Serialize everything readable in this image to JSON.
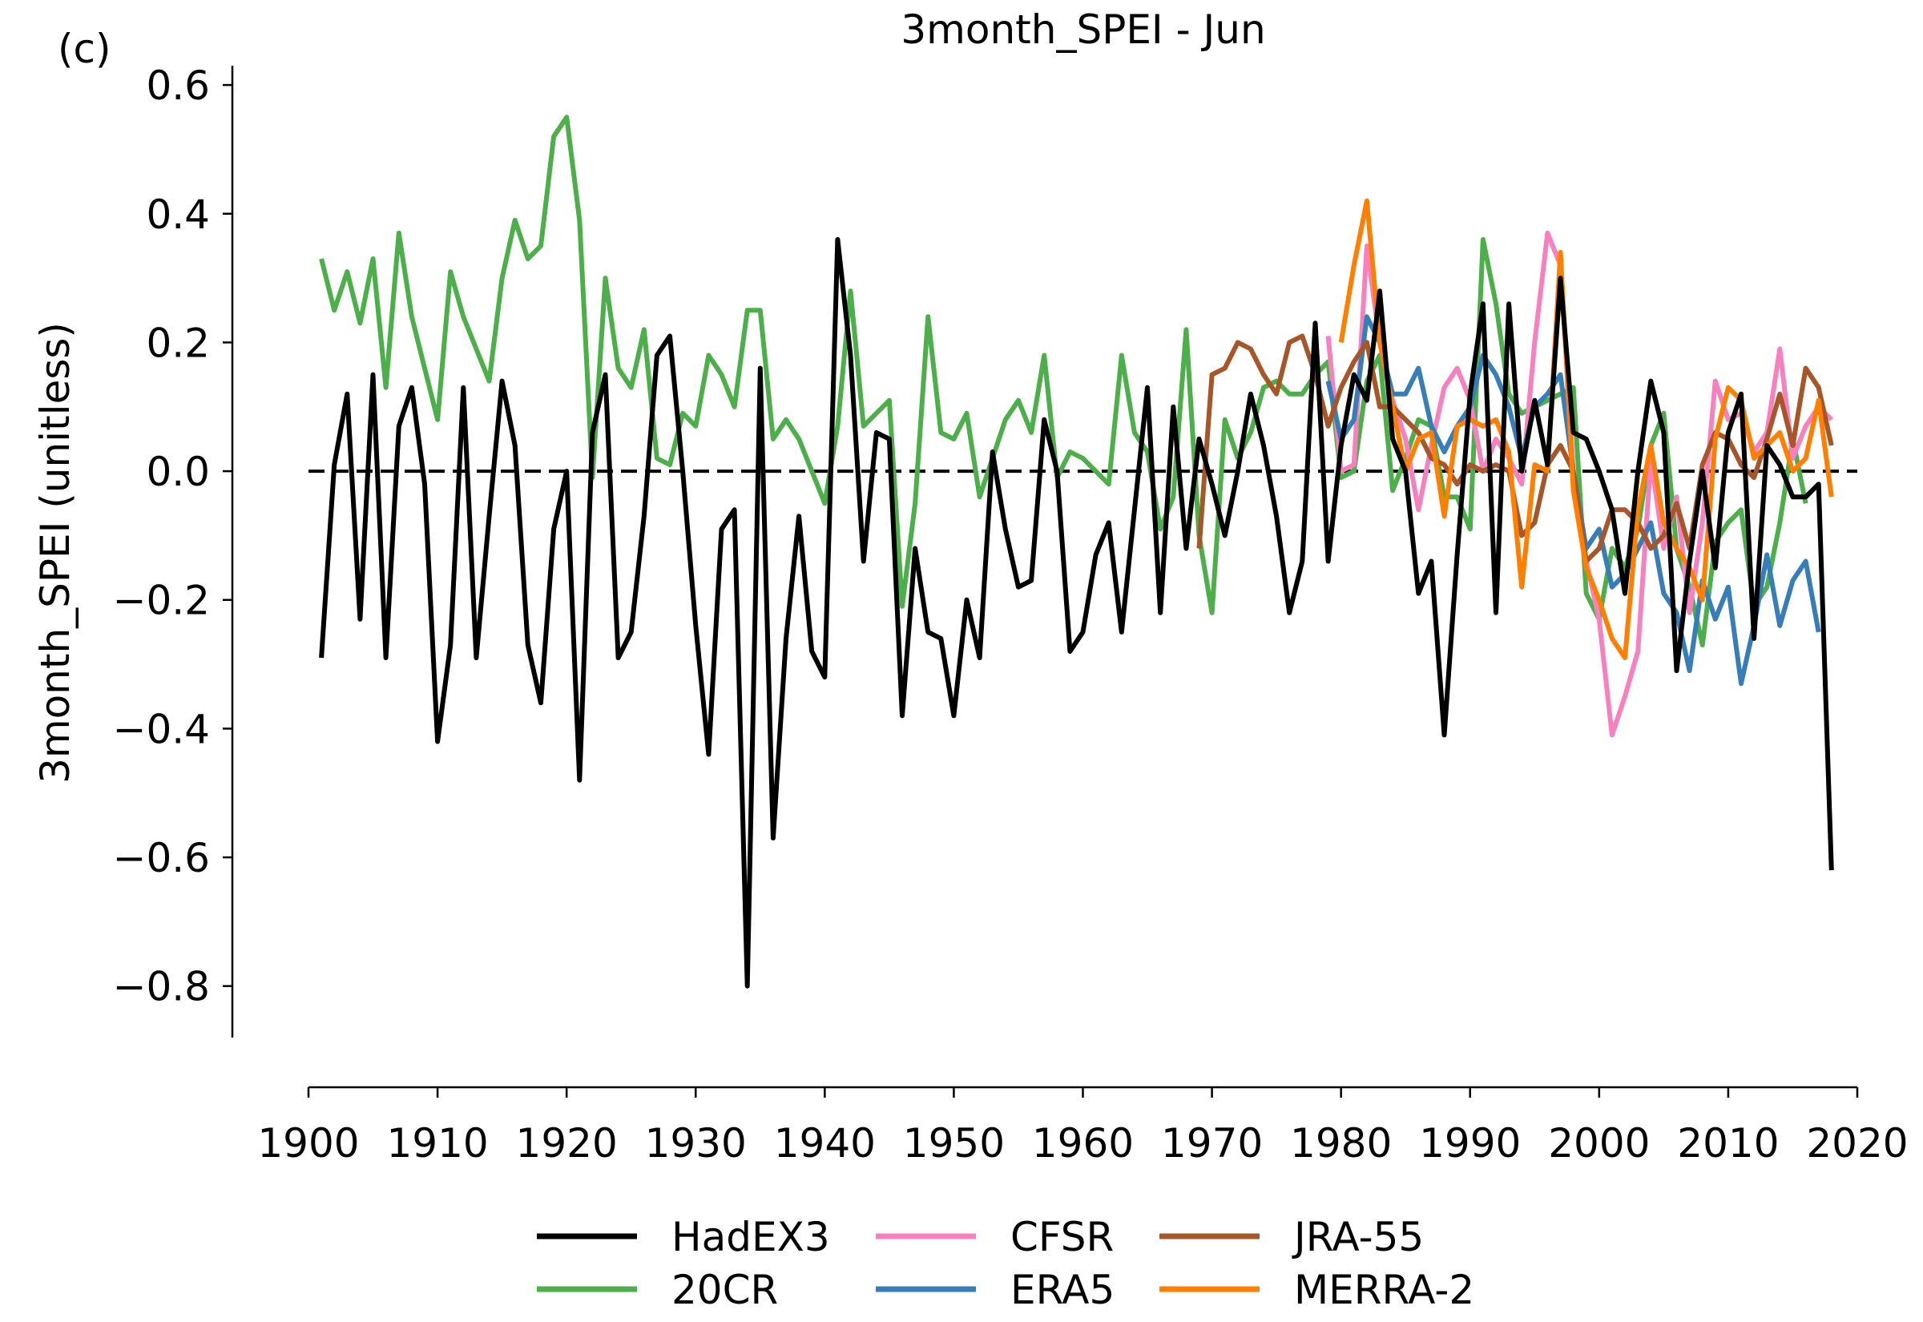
{
  "chart_data": {
    "type": "line",
    "panel_label": "(c)",
    "title": "3month_SPEI - Jun",
    "xlabel": "",
    "ylabel": "3month_SPEI (unitless)",
    "xlim": [
      1900,
      2020
    ],
    "ylim": [
      -0.88,
      0.63
    ],
    "x_ticks": [
      1900,
      1910,
      1920,
      1930,
      1940,
      1950,
      1960,
      1970,
      1980,
      1990,
      2000,
      2010,
      2020
    ],
    "x_tick_labels": [
      "1900",
      "1910",
      "1920",
      "1930",
      "1940",
      "1950",
      "1960",
      "1970",
      "1980",
      "1990",
      "2000",
      "2010",
      "2020"
    ],
    "y_ticks": [
      0.6,
      0.4,
      0.2,
      0.0,
      -0.2,
      -0.4,
      -0.6,
      -0.8
    ],
    "y_tick_labels": [
      "0.6",
      "0.4",
      "0.2",
      "0.0",
      "−0.2",
      "−0.4",
      "−0.6",
      "−0.8"
    ],
    "zero_line": {
      "y": 0.0,
      "style": "dashed",
      "color": "#000000"
    },
    "grid": false,
    "legend_position": "bottom-center",
    "series": [
      {
        "name": "HadEX3",
        "color": "#000000",
        "start_year": 1901,
        "values": [
          -0.29,
          0.01,
          0.12,
          -0.23,
          0.15,
          -0.29,
          0.07,
          0.13,
          -0.02,
          -0.42,
          -0.27,
          0.13,
          -0.29,
          -0.07,
          0.14,
          0.04,
          -0.27,
          -0.36,
          -0.09,
          0.0,
          -0.48,
          0.06,
          0.15,
          -0.29,
          -0.25,
          -0.07,
          0.18,
          0.21,
          0.0,
          -0.24,
          -0.44,
          -0.09,
          -0.06,
          -0.8,
          0.16,
          -0.57,
          -0.26,
          -0.07,
          -0.28,
          -0.32,
          0.36,
          0.18,
          -0.14,
          0.06,
          0.05,
          -0.38,
          -0.12,
          -0.25,
          -0.26,
          -0.38,
          -0.2,
          -0.29,
          0.03,
          -0.09,
          -0.18,
          -0.17,
          0.08,
          0.0,
          -0.28,
          -0.25,
          -0.13,
          -0.08,
          -0.25,
          -0.06,
          0.13,
          -0.22,
          0.1,
          -0.12,
          0.05,
          -0.02,
          -0.1,
          -0.0,
          0.12,
          0.04,
          -0.07,
          -0.22,
          -0.14,
          0.23,
          -0.14,
          0.04,
          0.15,
          0.11,
          0.28,
          0.05,
          0.0,
          -0.19,
          -0.14,
          -0.41,
          -0.13,
          0.12,
          0.26,
          -0.22,
          0.26,
          0.0,
          0.11,
          0.01,
          0.3,
          0.06,
          0.05,
          0.0,
          -0.06,
          -0.19,
          0.0,
          0.14,
          0.06,
          -0.31,
          -0.14,
          -0.0,
          -0.15,
          0.06,
          0.12,
          -0.26,
          0.04,
          0.01,
          -0.04,
          -0.04,
          -0.02,
          -0.62
        ]
      },
      {
        "name": "20CR",
        "color": "#4daf4a",
        "start_year": 1901,
        "values": [
          0.33,
          0.25,
          0.31,
          0.23,
          0.33,
          0.13,
          0.37,
          0.24,
          0.16,
          0.08,
          0.31,
          0.24,
          0.19,
          0.14,
          0.3,
          0.39,
          0.33,
          0.35,
          0.52,
          0.55,
          0.39,
          -0.01,
          0.3,
          0.16,
          0.13,
          0.22,
          0.02,
          0.01,
          0.09,
          0.07,
          0.18,
          0.15,
          0.1,
          0.25,
          0.25,
          0.05,
          0.08,
          0.05,
          -0.0,
          -0.05,
          0.07,
          0.28,
          0.07,
          0.09,
          0.11,
          -0.21,
          -0.05,
          0.24,
          0.06,
          0.05,
          0.09,
          -0.04,
          0.02,
          0.08,
          0.11,
          0.06,
          0.18,
          -0.01,
          0.03,
          0.02,
          -0.0,
          -0.02,
          0.18,
          0.06,
          0.03,
          -0.09,
          -0.04,
          0.22,
          -0.1,
          -0.22,
          0.08,
          0.02,
          0.06,
          0.13,
          0.14,
          0.12,
          0.12,
          0.15,
          0.17,
          -0.01,
          0.0,
          0.14,
          0.18,
          -0.03,
          0.02,
          0.08,
          0.07,
          -0.04,
          -0.04,
          -0.09,
          0.36,
          0.26,
          0.12,
          0.09,
          0.1,
          0.11,
          0.12,
          0.13,
          -0.19,
          -0.23,
          -0.12,
          -0.15,
          -0.09,
          0.04,
          0.09,
          -0.12,
          -0.18,
          -0.27,
          -0.11,
          -0.08,
          -0.06,
          -0.21,
          -0.18,
          -0.08,
          0.05,
          -0.05
        ]
      },
      {
        "name": "CFSR",
        "color": "#f781bf",
        "start_year": 1979,
        "values": [
          0.21,
          -0.0,
          0.01,
          0.35,
          0.2,
          0.11,
          0.05,
          -0.06,
          0.04,
          0.13,
          0.16,
          0.11,
          0.0,
          0.05,
          0.02,
          -0.02,
          0.2,
          0.37,
          0.32,
          0.0,
          -0.14,
          -0.23,
          -0.41,
          -0.35,
          -0.28,
          0.02,
          -0.12,
          -0.04,
          -0.22,
          -0.08,
          0.14,
          0.08,
          0.09,
          0.03,
          0.06,
          0.19,
          0.02,
          0.07,
          0.1,
          0.08
        ]
      },
      {
        "name": "ERA5",
        "color": "#377eb8",
        "start_year": 1979,
        "values": [
          0.14,
          0.05,
          0.08,
          0.24,
          0.2,
          0.12,
          0.12,
          0.16,
          0.07,
          0.03,
          0.07,
          0.1,
          0.18,
          0.15,
          0.1,
          0.02,
          0.1,
          0.12,
          0.15,
          0.0,
          -0.12,
          -0.09,
          -0.18,
          -0.16,
          -0.12,
          -0.08,
          -0.19,
          -0.22,
          -0.31,
          -0.17,
          -0.23,
          -0.18,
          -0.33,
          -0.24,
          -0.13,
          -0.24,
          -0.17,
          -0.14,
          -0.25
        ]
      },
      {
        "name": "JRA-55",
        "color": "#a65628",
        "start_year": 1969,
        "values": [
          -0.12,
          0.15,
          0.16,
          0.2,
          0.19,
          0.15,
          0.12,
          0.2,
          0.21,
          0.15,
          0.07,
          0.13,
          0.17,
          0.2,
          0.1,
          0.1,
          0.08,
          0.06,
          0.02,
          0.01,
          -0.02,
          0.01,
          0.0,
          0.01,
          0.0,
          -0.1,
          -0.08,
          0.01,
          0.04,
          0.0,
          -0.14,
          -0.12,
          -0.06,
          -0.06,
          -0.08,
          -0.12,
          -0.1,
          -0.05,
          -0.12,
          0.01,
          0.06,
          0.05,
          0.01,
          -0.01,
          0.05,
          0.12,
          0.04,
          0.16,
          0.13,
          0.04
        ]
      },
      {
        "name": "MERRA-2",
        "color": "#ff7f00",
        "start_year": 1980,
        "values": [
          0.2,
          0.32,
          0.42,
          0.2,
          0.1,
          0.0,
          0.05,
          0.06,
          -0.07,
          0.07,
          0.08,
          0.07,
          0.08,
          0.03,
          -0.18,
          0.01,
          0.0,
          0.34,
          -0.03,
          -0.15,
          -0.2,
          -0.26,
          -0.29,
          -0.06,
          0.04,
          -0.08,
          -0.12,
          -0.15,
          -0.2,
          0.05,
          0.13,
          0.11,
          0.02,
          0.04,
          0.06,
          0.0,
          0.02,
          0.11,
          -0.04
        ]
      }
    ]
  }
}
